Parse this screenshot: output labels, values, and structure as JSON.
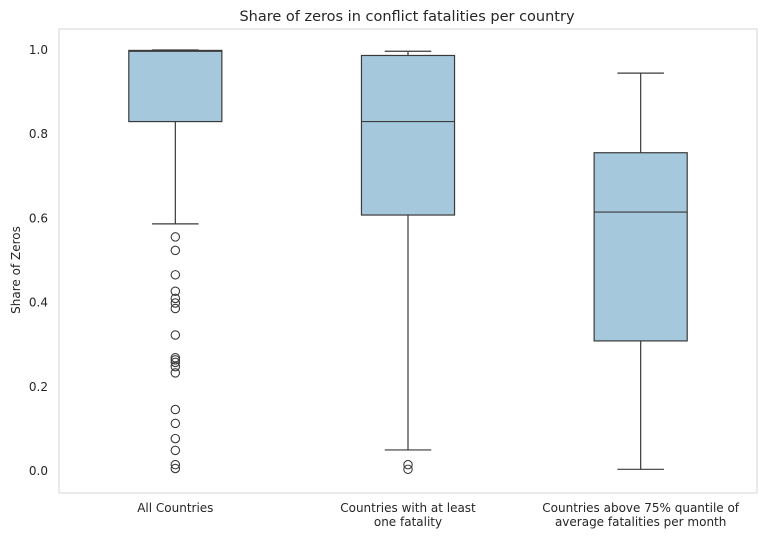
{
  "chart_data": {
    "type": "box",
    "title": "Share of zeros in conflict fatalities per country",
    "xlabel": "",
    "ylabel": "Share of Zeros",
    "ylim": [
      -0.05,
      1.05
    ],
    "yticks": [
      0.0,
      0.2,
      0.4,
      0.6,
      0.8,
      1.0
    ],
    "ytick_labels": [
      "0.0",
      "0.2",
      "0.4",
      "0.6",
      "0.8",
      "1.0"
    ],
    "grid": false,
    "box_color": "#a6c8dd",
    "edge_color": "#3a3a3a",
    "categories": [
      [
        "All Countries"
      ],
      [
        "Countries with at least",
        "one fatality"
      ],
      [
        "Countries above 75% quantile of",
        "average fatalities per month"
      ]
    ],
    "boxes": [
      {
        "whisker_low": 0.587,
        "q1": 0.83,
        "median": 0.997,
        "q3": 0.999,
        "whisker_high": 1.0,
        "outliers": [
          0.556,
          0.524,
          0.466,
          0.427,
          0.41,
          0.399,
          0.386,
          0.323,
          0.269,
          0.264,
          0.258,
          0.248,
          0.233,
          0.146,
          0.113,
          0.077,
          0.049,
          0.015,
          0.006
        ]
      },
      {
        "whisker_low": 0.05,
        "q1": 0.608,
        "median": 0.83,
        "q3": 0.987,
        "whisker_high": 0.997,
        "outliers": [
          0.015,
          0.004
        ]
      },
      {
        "whisker_low": 0.004,
        "q1": 0.309,
        "median": 0.615,
        "q3": 0.756,
        "whisker_high": 0.945,
        "outliers": []
      }
    ]
  }
}
